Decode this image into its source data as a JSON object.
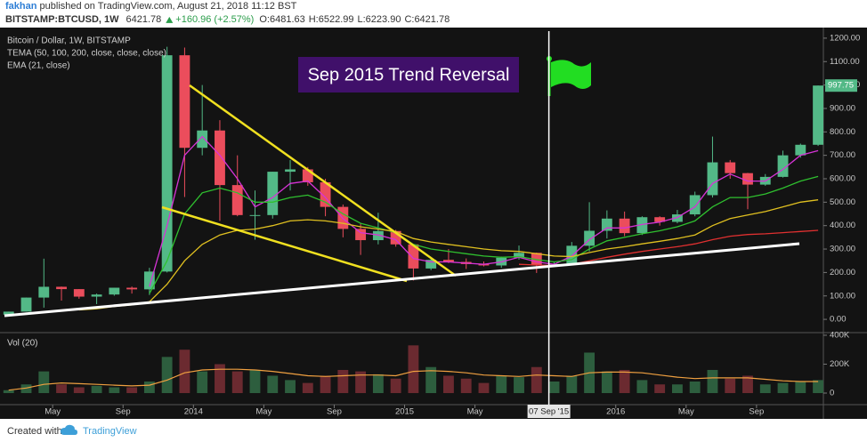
{
  "header": {
    "user": "fakhan",
    "published": "published on TradingView.com, August 21, 2018 11:12 BST",
    "symbol": "BITSTAMP:BTCUSD, 1W",
    "last": "6421.78",
    "change": "+160.96 (+2.57%)",
    "open": "O:6481.63",
    "high": "H:6522.99",
    "low": "L:6223.90",
    "close": "C:6421.78"
  },
  "chart_data": [
    {
      "type": "candlestick",
      "title": "Bitcoin / Dollar, 1W, BITSTAMP",
      "indicators": [
        "TEMA (50, 100, 200, close, close, close)",
        "EMA (21, close)"
      ],
      "annotation": "Sep 2015 Trend Reversal",
      "marker": {
        "x": 32.2,
        "label": "07 Sep '15"
      },
      "up_color": "#53b987",
      "down_color": "#eb4d5c",
      "x": [
        1.5,
        2.5,
        3.5,
        4.5,
        5.5,
        6.5,
        7.5,
        8.5,
        9.5,
        10.5,
        11.5,
        12.5,
        13.5,
        14.5,
        15.5,
        16.5,
        17.5,
        18.5,
        19.5,
        20.5,
        21.5,
        22.5,
        23.5,
        24.5,
        25.5,
        26.5,
        27.5,
        28.5,
        29.5,
        30.5,
        31.5,
        32.5,
        33.5,
        34.5,
        35.5,
        36.5,
        37.5,
        38.5,
        39.5,
        40.5,
        41.5,
        42.5,
        43.5,
        44.5,
        45.5,
        46.5,
        47.5
      ],
      "open": [
        20,
        33,
        93,
        139,
        129,
        97,
        106,
        135,
        128,
        204,
        1127,
        732,
        806,
        573,
        445,
        445,
        630,
        640,
        585,
        480,
        386,
        338,
        377,
        320,
        217,
        254,
        245,
        236,
        230,
        263,
        284,
        230,
        236,
        314,
        378,
        430,
        368,
        436,
        416,
        448,
        530,
        670,
        624,
        575,
        608,
        700,
        745
      ],
      "high": [
        33,
        93,
        259,
        140,
        129,
        110,
        135,
        140,
        220,
        1163,
        1160,
        1000,
        850,
        700,
        550,
        630,
        680,
        650,
        600,
        490,
        410,
        455,
        382,
        320,
        265,
        300,
        260,
        247,
        268,
        315,
        285,
        245,
        330,
        500,
        465,
        460,
        440,
        440,
        467,
        545,
        780,
        680,
        625,
        620,
        720,
        750,
        998
      ],
      "low": [
        20,
        33,
        50,
        80,
        88,
        65,
        101,
        110,
        104,
        200,
        522,
        700,
        420,
        440,
        340,
        430,
        550,
        570,
        440,
        350,
        275,
        320,
        310,
        166,
        210,
        240,
        215,
        226,
        220,
        255,
        198,
        225,
        235,
        290,
        345,
        355,
        360,
        400,
        410,
        440,
        520,
        600,
        470,
        570,
        605,
        690,
        740
      ],
      "close": [
        33,
        93,
        139,
        129,
        97,
        106,
        135,
        128,
        204,
        1127,
        732,
        806,
        573,
        445,
        445,
        630,
        640,
        585,
        480,
        386,
        338,
        377,
        320,
        217,
        254,
        245,
        236,
        230,
        263,
        284,
        230,
        236,
        314,
        378,
        430,
        368,
        436,
        416,
        448,
        530,
        670,
        624,
        575,
        608,
        700,
        745,
        997.75
      ],
      "series": [
        {
          "color": "#d633d6",
          "values": [
            null,
            null,
            null,
            null,
            null,
            null,
            null,
            null,
            140,
            400,
            700,
            780,
            700,
            600,
            480,
            520,
            580,
            590,
            520,
            430,
            370,
            360,
            340,
            260,
            245,
            245,
            240,
            235,
            245,
            265,
            245,
            235,
            270,
            340,
            390,
            390,
            405,
            415,
            435,
            480,
            580,
            620,
            590,
            590,
            640,
            700,
            720
          ]
        },
        {
          "color": "#2fc02f",
          "values": [
            null,
            null,
            null,
            null,
            null,
            null,
            null,
            null,
            110,
            250,
            450,
            540,
            560,
            540,
            500,
            500,
            520,
            530,
            500,
            450,
            410,
            390,
            370,
            320,
            300,
            290,
            280,
            270,
            265,
            268,
            255,
            245,
            255,
            300,
            335,
            350,
            365,
            378,
            395,
            420,
            480,
            520,
            520,
            535,
            560,
            590,
            610
          ]
        },
        {
          "color": "#e0c020",
          "values": [
            null,
            null,
            null,
            null,
            40,
            45,
            55,
            62,
            75,
            150,
            250,
            320,
            360,
            380,
            385,
            400,
            420,
            425,
            420,
            410,
            395,
            385,
            375,
            345,
            330,
            320,
            310,
            300,
            293,
            290,
            280,
            270,
            268,
            285,
            300,
            310,
            322,
            333,
            345,
            360,
            400,
            430,
            445,
            460,
            480,
            500,
            510
          ]
        },
        {
          "color": "#e03030",
          "values": [
            null,
            null,
            null,
            null,
            null,
            null,
            null,
            null,
            null,
            null,
            null,
            null,
            null,
            null,
            null,
            null,
            null,
            null,
            null,
            null,
            null,
            null,
            null,
            null,
            null,
            null,
            null,
            null,
            null,
            235,
            232,
            230,
            235,
            250,
            265,
            278,
            290,
            300,
            310,
            322,
            340,
            355,
            362,
            365,
            370,
            375,
            380
          ]
        }
      ],
      "xlim": [
        1.26,
        47.8
      ],
      "xticks": [
        {
          "value": 4,
          "label": "May"
        },
        {
          "value": 8,
          "label": "Sep"
        },
        {
          "value": 12,
          "label": "2014"
        },
        {
          "value": 16,
          "label": "May"
        },
        {
          "value": 20,
          "label": "Sep"
        },
        {
          "value": 24,
          "label": "2015"
        },
        {
          "value": 28,
          "label": "May"
        },
        {
          "value": 36,
          "label": "2016"
        },
        {
          "value": 40,
          "label": "May"
        },
        {
          "value": 44,
          "label": "Sep"
        }
      ],
      "ylim": [
        -49,
        1230
      ],
      "yticks": [
        {
          "value": 0,
          "label": "0.00"
        },
        {
          "value": 100,
          "label": "100.00"
        },
        {
          "value": 200,
          "label": "200.00"
        },
        {
          "value": 300,
          "label": "300.00"
        },
        {
          "value": 400,
          "label": "400.00"
        },
        {
          "value": 500,
          "label": "500.00"
        },
        {
          "value": 600,
          "label": "600.00"
        },
        {
          "value": 700,
          "label": "700.00"
        },
        {
          "value": 800,
          "label": "800.00"
        },
        {
          "value": 900,
          "label": "900.00"
        },
        {
          "value": 1000,
          "label": "1000.00"
        },
        {
          "value": 1100,
          "label": "1100.00"
        },
        {
          "value": 1200,
          "label": "1200.00"
        }
      ]
    },
    {
      "type": "bar",
      "title": "Vol (20)",
      "x": [
        1.5,
        2.5,
        3.5,
        4.5,
        5.5,
        6.5,
        7.5,
        8.5,
        9.5,
        10.5,
        11.5,
        12.5,
        13.5,
        14.5,
        15.5,
        16.5,
        17.5,
        18.5,
        19.5,
        20.5,
        21.5,
        22.5,
        23.5,
        24.5,
        25.5,
        26.5,
        27.5,
        28.5,
        29.5,
        30.5,
        31.5,
        32.5,
        33.5,
        34.5,
        35.5,
        36.5,
        37.5,
        38.5,
        39.5,
        40.5,
        41.5,
        42.5,
        43.5,
        44.5,
        45.5,
        46.5,
        47.5
      ],
      "values": [
        20000,
        60000,
        150000,
        60000,
        40000,
        50000,
        40000,
        40000,
        80000,
        250000,
        300000,
        150000,
        200000,
        150000,
        160000,
        120000,
        90000,
        70000,
        120000,
        160000,
        150000,
        130000,
        100000,
        330000,
        180000,
        120000,
        100000,
        70000,
        120000,
        110000,
        180000,
        80000,
        120000,
        280000,
        150000,
        160000,
        90000,
        60000,
        60000,
        80000,
        160000,
        100000,
        120000,
        60000,
        70000,
        80000,
        90000
      ],
      "up_color": "#2d5e3e",
      "down_color": "#6b2a30",
      "series": [
        {
          "color": "#f0a040",
          "values": [
            20000,
            35000,
            60000,
            70000,
            65000,
            60000,
            55000,
            50000,
            55000,
            90000,
            140000,
            160000,
            165000,
            165000,
            160000,
            150000,
            135000,
            120000,
            115000,
            120000,
            125000,
            125000,
            120000,
            150000,
            155000,
            150000,
            140000,
            125000,
            120000,
            115000,
            125000,
            120000,
            115000,
            140000,
            145000,
            145000,
            140000,
            125000,
            110000,
            100000,
            105000,
            105000,
            105000,
            95000,
            85000,
            80000,
            80000
          ]
        }
      ],
      "ylim": [
        -123000,
        412000
      ],
      "yticks": [
        0,
        {
          "value": 200000,
          "label": "200K"
        },
        {
          "value": 400000,
          "label": "400K"
        }
      ]
    }
  ],
  "footer": {
    "created": "Created with",
    "brand": "TradingView"
  }
}
